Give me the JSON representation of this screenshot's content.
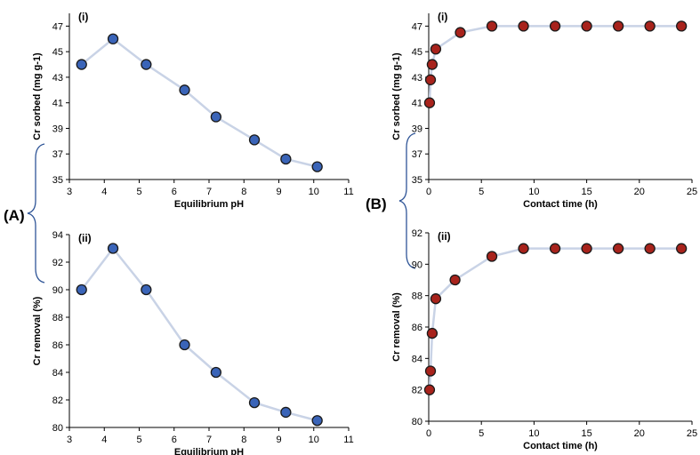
{
  "figure": {
    "group_labels": [
      "(A)",
      "(B)"
    ],
    "colors": {
      "blue_marker_fill": "#3a64b8",
      "red_marker_fill": "#a8231c",
      "marker_stroke": "#1a1a1a",
      "line_color": "#c9d3e6",
      "axis_color": "#000000"
    }
  },
  "chart_data": [
    {
      "id": "A-i",
      "type": "line",
      "panel_label": "(i)",
      "xlabel": "Equilibrium pH",
      "ylabel": "Cr sorbed (mg g-1)",
      "xlim": [
        3,
        11
      ],
      "ylim": [
        35,
        48
      ],
      "xticks": [
        3,
        4,
        5,
        6,
        7,
        8,
        9,
        10,
        11
      ],
      "yticks": [
        35,
        37,
        39,
        41,
        43,
        45,
        47
      ],
      "x": [
        3.35,
        4.25,
        5.2,
        6.3,
        7.2,
        8.3,
        9.2,
        10.1
      ],
      "y": [
        44,
        46,
        44,
        42,
        39.9,
        38.1,
        36.6,
        36
      ],
      "marker": "blue"
    },
    {
      "id": "A-ii",
      "type": "line",
      "panel_label": "(ii)",
      "xlabel": "Equilibrium pH",
      "ylabel": "Cr removal (%)",
      "xlim": [
        3,
        11
      ],
      "ylim": [
        80,
        94
      ],
      "xticks": [
        3,
        4,
        5,
        6,
        7,
        8,
        9,
        10,
        11
      ],
      "yticks": [
        80,
        82,
        84,
        86,
        88,
        90,
        92,
        94
      ],
      "x": [
        3.35,
        4.25,
        5.2,
        6.3,
        7.2,
        8.3,
        9.2,
        10.1
      ],
      "y": [
        90,
        93,
        90,
        86,
        84,
        81.8,
        81.1,
        80.5
      ],
      "marker": "blue"
    },
    {
      "id": "B-i",
      "type": "line",
      "panel_label": "(i)",
      "xlabel": "Contact time (h)",
      "ylabel": "Cr sorbed (mg g-1)",
      "xlim": [
        0,
        25
      ],
      "ylim": [
        35,
        48
      ],
      "xticks": [
        0,
        5,
        10,
        15,
        20,
        25
      ],
      "yticks": [
        35,
        37,
        39,
        41,
        43,
        45,
        47
      ],
      "x": [
        0.08,
        0.17,
        0.33,
        0.67,
        3,
        6,
        9,
        12,
        15,
        18,
        21,
        24
      ],
      "y": [
        41,
        42.8,
        44,
        45.2,
        46.5,
        47,
        47,
        47,
        47,
        47,
        47,
        47
      ],
      "marker": "red"
    },
    {
      "id": "B-ii",
      "type": "line",
      "panel_label": "(ii)",
      "xlabel": "Contact time (h)",
      "ylabel": "Cr removal  (%)",
      "xlim": [
        0,
        25
      ],
      "ylim": [
        80,
        92
      ],
      "xticks": [
        0,
        5,
        10,
        15,
        20,
        25
      ],
      "yticks": [
        80,
        82,
        84,
        86,
        88,
        90,
        92
      ],
      "x": [
        0.08,
        0.17,
        0.33,
        0.67,
        2.5,
        6,
        9,
        12,
        15,
        18,
        21,
        24
      ],
      "y": [
        82,
        83.2,
        85.6,
        87.8,
        89,
        90.5,
        91,
        91,
        91,
        91,
        91,
        91
      ],
      "marker": "red"
    }
  ]
}
